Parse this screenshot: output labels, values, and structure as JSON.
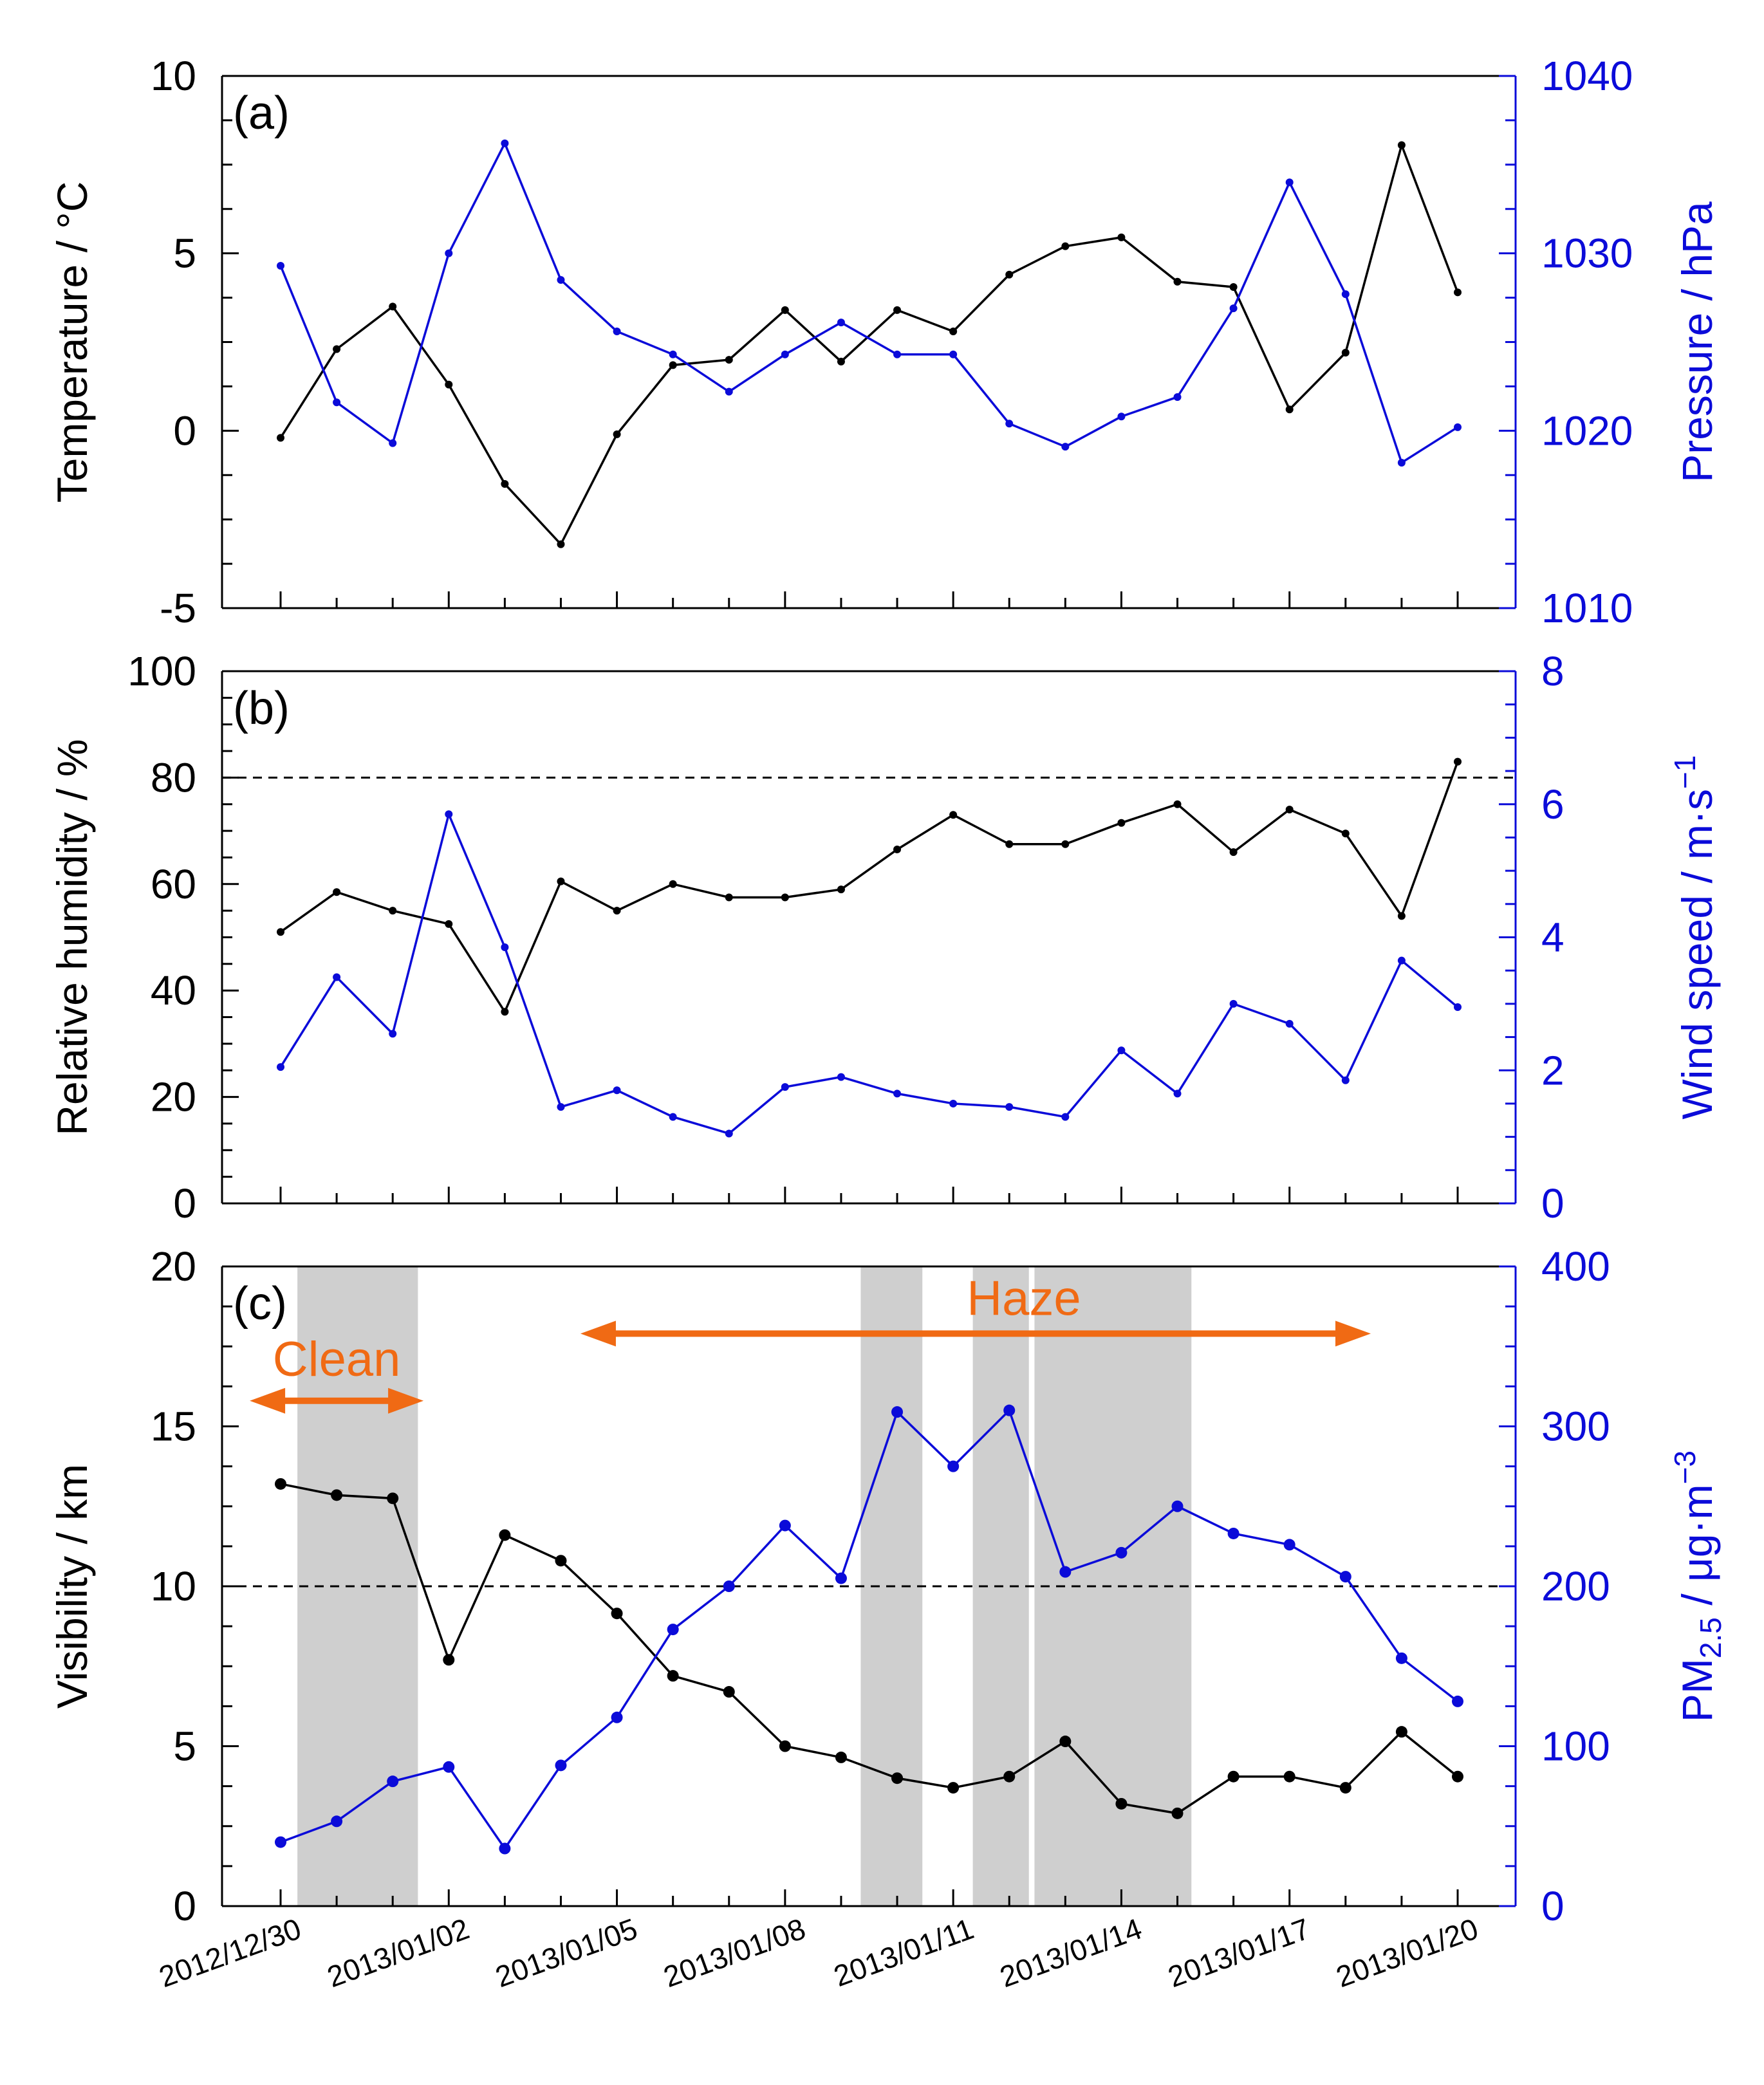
{
  "dates": [
    "2012/12/30",
    "2012/12/31",
    "2013/01/01",
    "2013/01/02",
    "2013/01/03",
    "2013/01/04",
    "2013/01/05",
    "2013/01/06",
    "2013/01/07",
    "2013/01/08",
    "2013/01/09",
    "2013/01/10",
    "2013/01/11",
    "2013/01/12",
    "2013/01/13",
    "2013/01/14",
    "2013/01/15",
    "2013/01/16",
    "2013/01/17",
    "2013/01/18",
    "2013/01/19",
    "2013/01/20"
  ],
  "x_tick_labels": [
    "2012/12/30",
    "2013/01/02",
    "2013/01/05",
    "2013/01/08",
    "2013/01/11",
    "2013/01/14",
    "2013/01/17",
    "2013/01/20"
  ],
  "x_tick_indices": [
    0,
    3,
    6,
    9,
    12,
    15,
    18,
    21
  ],
  "colors": {
    "left_axis": "#000000",
    "right_axis": "#0b0bd9",
    "annotation": "#f06a14",
    "shade": "#cfcfcf"
  },
  "chart_data": [
    {
      "type": "line",
      "panel_label": "(a)",
      "y_left": {
        "label": "Temperature / °C",
        "lim": [
          -5,
          10
        ],
        "ticks": [
          -5,
          0,
          5,
          10
        ],
        "tick_labels": [
          "-5",
          "0",
          "5",
          "10"
        ]
      },
      "y_right": {
        "label": "Pressure / hPa",
        "lim": [
          1010,
          1040
        ],
        "ticks": [
          1010,
          1020,
          1030,
          1040
        ],
        "tick_labels": [
          "1010",
          "1020",
          "1030",
          "1040"
        ]
      },
      "series": [
        {
          "name": "Temperature",
          "axis": "left",
          "color": "#000000",
          "values": [
            -0.2,
            2.3,
            3.5,
            1.3,
            -1.5,
            -3.2,
            -0.1,
            1.85,
            2.0,
            3.4,
            1.95,
            3.4,
            2.8,
            4.4,
            5.2,
            5.45,
            4.2,
            4.05,
            0.6,
            2.2,
            8.05,
            3.9
          ]
        },
        {
          "name": "Pressure",
          "axis": "right",
          "color": "#0b0bd9",
          "values": [
            1029.3,
            1021.6,
            1019.3,
            1030.0,
            1036.2,
            1028.5,
            1025.6,
            1024.3,
            1022.2,
            1024.3,
            1026.1,
            1024.3,
            1024.3,
            1020.4,
            1019.1,
            1020.8,
            1021.9,
            1026.9,
            1034.0,
            1027.7,
            1018.2,
            1020.2
          ]
        }
      ]
    },
    {
      "type": "line",
      "panel_label": "(b)",
      "y_left": {
        "label": "Relative humidity / %",
        "lim": [
          0,
          100
        ],
        "ticks": [
          0,
          20,
          40,
          60,
          80,
          100
        ],
        "tick_labels": [
          "0",
          "20",
          "40",
          "60",
          "80",
          "100"
        ]
      },
      "y_right": {
        "label": "Wind speed / m·s",
        "label_sup": "−1",
        "lim": [
          0,
          8
        ],
        "ticks": [
          0,
          2,
          4,
          6,
          8
        ],
        "tick_labels": [
          "0",
          "2",
          "4",
          "6",
          "8"
        ]
      },
      "reference_line": {
        "axis": "left",
        "value": 80
      },
      "series": [
        {
          "name": "Relative humidity",
          "axis": "left",
          "color": "#000000",
          "values": [
            51,
            58.5,
            55,
            52.5,
            36,
            60.5,
            55,
            60,
            57.5,
            57.5,
            59,
            66.5,
            73,
            67.5,
            67.5,
            71.5,
            75,
            66,
            74,
            69.5,
            54,
            83
          ]
        },
        {
          "name": "Wind speed",
          "axis": "right",
          "color": "#0b0bd9",
          "values": [
            2.05,
            3.4,
            2.55,
            5.85,
            3.85,
            1.45,
            1.7,
            1.3,
            1.05,
            1.75,
            1.9,
            1.65,
            1.5,
            1.45,
            1.3,
            2.3,
            1.65,
            3.0,
            2.7,
            1.85,
            3.65,
            2.95
          ]
        }
      ]
    },
    {
      "type": "line",
      "panel_label": "(c)",
      "y_left": {
        "label": "Visibility / km",
        "lim": [
          0,
          20
        ],
        "ticks": [
          0,
          5,
          10,
          15,
          20
        ],
        "tick_labels": [
          "0",
          "5",
          "10",
          "15",
          "20"
        ]
      },
      "y_right": {
        "label_prefix": "PM",
        "label_sub": "2.5",
        "label_suffix": " / μg·m",
        "label_sup": "−3",
        "lim": [
          0,
          400
        ],
        "ticks": [
          0,
          100,
          200,
          300,
          400
        ],
        "tick_labels": [
          "0",
          "100",
          "200",
          "300",
          "400"
        ]
      },
      "reference_line": {
        "axis": "left",
        "value": 10
      },
      "shaded_ranges": [
        [
          0.3,
          2.45
        ],
        [
          10.35,
          11.45
        ],
        [
          12.35,
          13.35
        ],
        [
          13.45,
          16.25
        ]
      ],
      "annotations": [
        {
          "text": "Clean",
          "arrow_from": -0.55,
          "arrow_to": 2.55,
          "arrow_level": 15.8,
          "text_level": 17.1
        },
        {
          "text": "Haze",
          "arrow_from": 5.35,
          "arrow_to": 19.45,
          "arrow_level": 17.9,
          "text_level": 19.0
        }
      ],
      "series": [
        {
          "name": "Visibility",
          "axis": "left",
          "color": "#000000",
          "values": [
            13.2,
            12.85,
            12.75,
            7.7,
            11.6,
            10.8,
            9.15,
            7.2,
            6.7,
            5.0,
            4.65,
            4.0,
            3.7,
            4.05,
            5.15,
            3.2,
            2.9,
            4.05,
            4.05,
            3.7,
            5.45,
            4.05
          ]
        },
        {
          "name": "PM2.5",
          "axis": "right",
          "color": "#0b0bd9",
          "values": [
            40,
            53,
            78,
            87,
            36,
            88,
            118,
            173,
            200,
            238,
            205,
            309,
            275,
            310,
            209,
            221,
            250,
            233,
            226,
            206,
            155,
            128
          ]
        }
      ]
    }
  ]
}
